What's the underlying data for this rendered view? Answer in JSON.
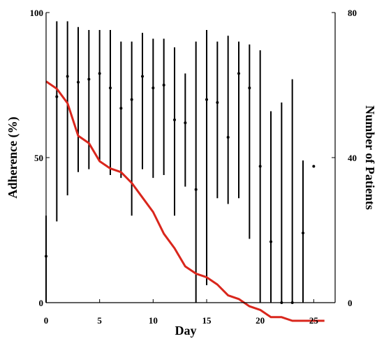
{
  "chart_data": {
    "type": "line",
    "title": "",
    "xlabel": "Day",
    "ylabel_left": "Adherence (%)",
    "ylabel_right": "Number of Patients",
    "xlim": [
      0,
      27
    ],
    "ylim_left": [
      0,
      100
    ],
    "ylim_right": [
      0,
      80
    ],
    "x_ticks": [
      0,
      5,
      10,
      15,
      20,
      25
    ],
    "y_left_ticks": [
      0,
      50,
      100
    ],
    "y_right_ticks": [
      0,
      40,
      80
    ],
    "grid": false,
    "colors": {
      "line": "#d9261c",
      "error_bars": "#000000",
      "axes": "#000000"
    },
    "series": [
      {
        "axis": "left",
        "style": "mean-with-error-bars",
        "x": [
          0,
          1,
          2,
          3,
          4,
          5,
          6,
          7,
          8,
          9,
          10,
          11,
          12,
          13,
          14,
          15,
          16,
          17,
          18,
          19,
          20,
          21,
          22,
          23,
          24,
          25
        ],
        "mean": [
          16,
          71,
          78,
          76,
          77,
          79,
          74,
          67,
          70,
          78,
          74,
          75,
          63,
          62,
          39,
          70,
          69,
          57,
          79,
          74,
          47,
          21,
          0,
          0,
          24,
          47
        ],
        "low": [
          0,
          28,
          37,
          45,
          46,
          49,
          44,
          43,
          30,
          46,
          43,
          44,
          30,
          40,
          0,
          6,
          36,
          34,
          36,
          22,
          0,
          0,
          0,
          0,
          0,
          null
        ],
        "high": [
          30,
          97,
          97,
          95,
          94,
          94,
          94,
          90,
          90,
          93,
          91,
          91,
          88,
          79,
          90,
          94,
          90,
          92,
          90,
          89,
          87,
          66,
          69,
          77,
          49,
          null
        ]
      },
      {
        "axis": "right",
        "style": "line",
        "x": [
          0,
          1,
          2,
          3,
          4,
          5,
          6,
          7,
          8,
          9,
          10,
          11,
          12,
          13,
          14,
          15,
          16,
          17,
          18,
          19,
          20,
          21,
          22,
          23,
          24,
          25,
          26
        ],
        "values": [
          61,
          59,
          55,
          46,
          44,
          39,
          37,
          36,
          33,
          29,
          25,
          19,
          15,
          10,
          8,
          7,
          5,
          2,
          1,
          -1,
          -2,
          -4,
          -4,
          -5,
          -5,
          -5,
          -5
        ]
      }
    ]
  }
}
